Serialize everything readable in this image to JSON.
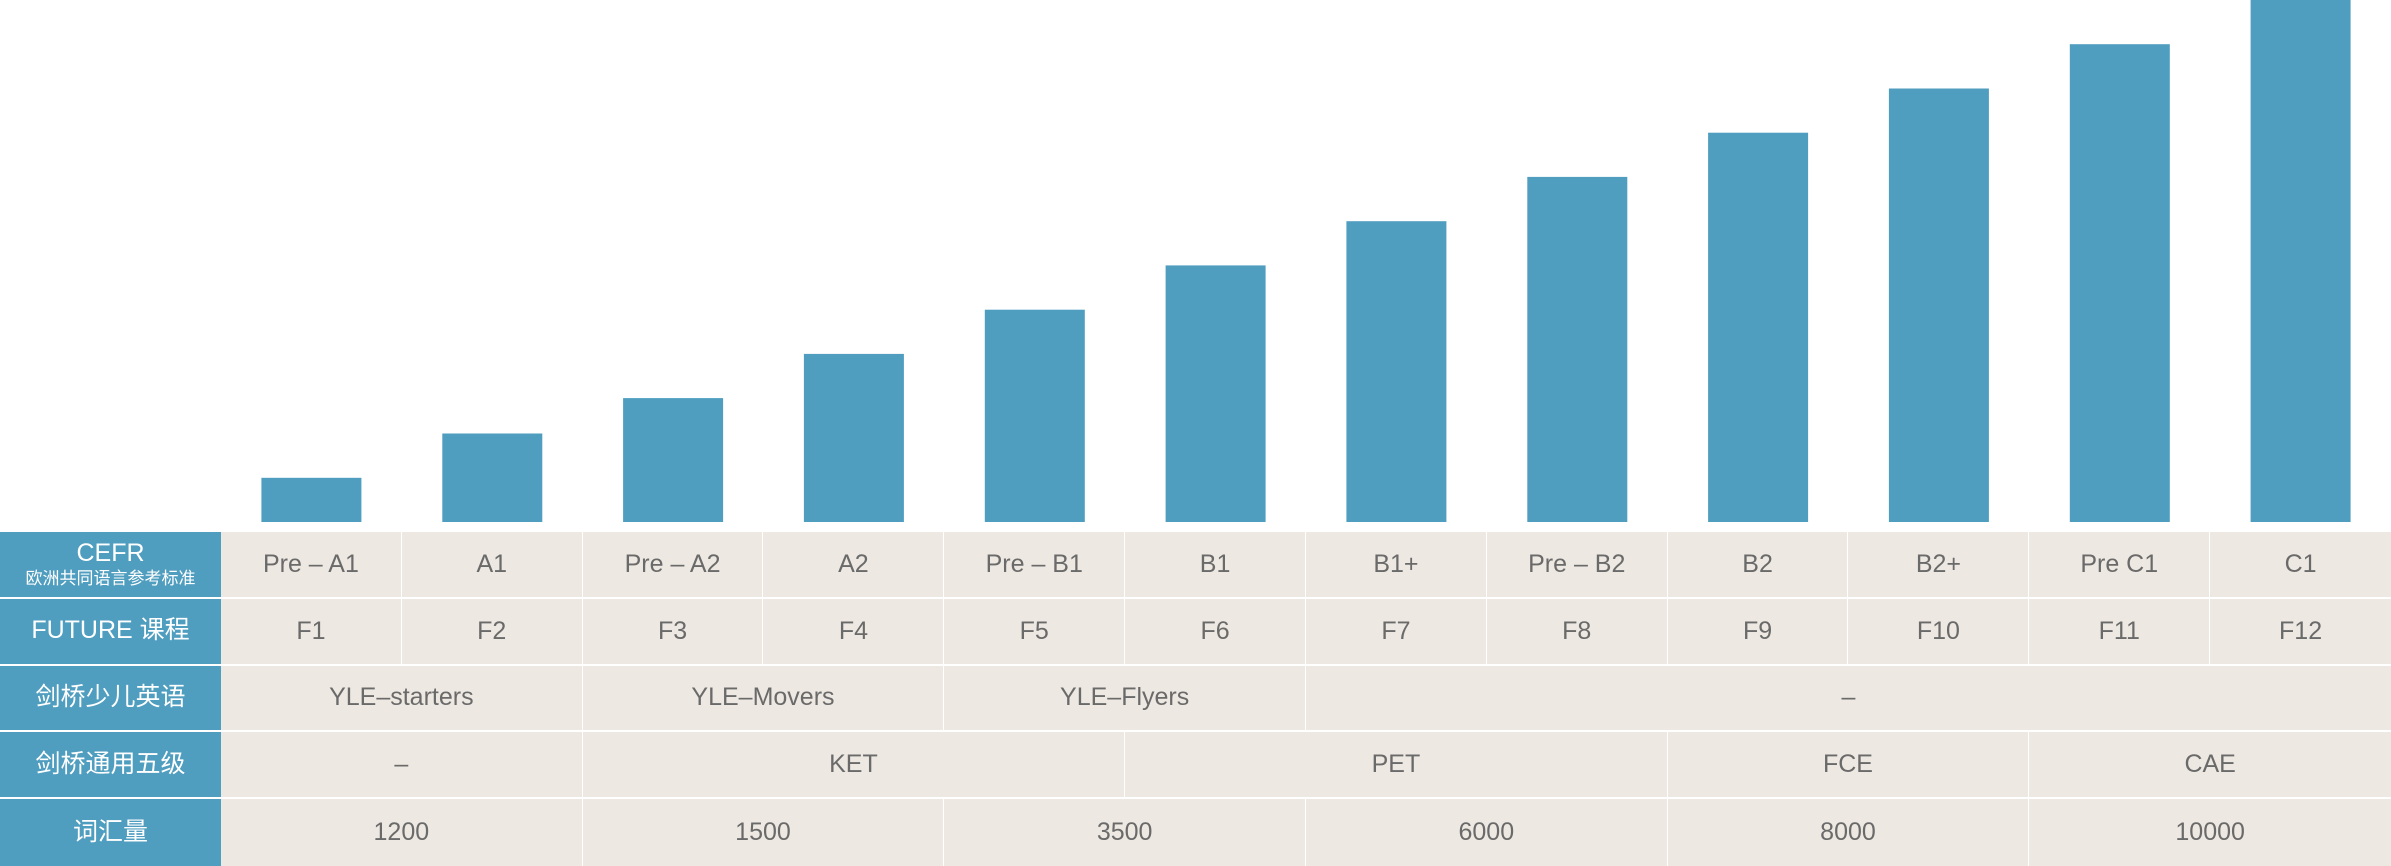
{
  "colors": {
    "bar": "#4f9dbf",
    "header_bg": "#4f9dbf",
    "cell_bg": "#ede8e1",
    "text": "#6a6a6a"
  },
  "chart_data": {
    "type": "bar",
    "categories": [
      "Pre – A1",
      "A1",
      "Pre – A2",
      "A2",
      "Pre – B1",
      "B1",
      "B1+",
      "Pre – B2",
      "B2",
      "B2+",
      "Pre C1",
      "C1"
    ],
    "values": [
      1,
      2,
      2.8,
      3.8,
      4.8,
      5.8,
      6.8,
      7.8,
      8.8,
      9.8,
      10.8,
      11.8
    ],
    "ylim": [
      0,
      11.8
    ],
    "grid": false,
    "title": "",
    "xlabel": "",
    "ylabel": ""
  },
  "table": {
    "rows": [
      {
        "header": "CEFR",
        "subheader": "欧洲共同语言参考标准",
        "cells": [
          {
            "text": "Pre – A1",
            "span": 1
          },
          {
            "text": "A1",
            "span": 1
          },
          {
            "text": "Pre – A2",
            "span": 1
          },
          {
            "text": "A2",
            "span": 1
          },
          {
            "text": "Pre – B1",
            "span": 1
          },
          {
            "text": "B1",
            "span": 1
          },
          {
            "text": "B1+",
            "span": 1
          },
          {
            "text": "Pre – B2",
            "span": 1
          },
          {
            "text": "B2",
            "span": 1
          },
          {
            "text": "B2+",
            "span": 1
          },
          {
            "text": "Pre C1",
            "span": 1
          },
          {
            "text": "C1",
            "span": 1
          }
        ]
      },
      {
        "header": "FUTURE 课程",
        "subheader": "",
        "cells": [
          {
            "text": "F1",
            "span": 1
          },
          {
            "text": "F2",
            "span": 1
          },
          {
            "text": "F3",
            "span": 1
          },
          {
            "text": "F4",
            "span": 1
          },
          {
            "text": "F5",
            "span": 1
          },
          {
            "text": "F6",
            "span": 1
          },
          {
            "text": "F7",
            "span": 1
          },
          {
            "text": "F8",
            "span": 1
          },
          {
            "text": "F9",
            "span": 1
          },
          {
            "text": "F10",
            "span": 1
          },
          {
            "text": "F11",
            "span": 1
          },
          {
            "text": "F12",
            "span": 1
          }
        ]
      },
      {
        "header": "剑桥少儿英语",
        "subheader": "",
        "cells": [
          {
            "text": "YLE–starters",
            "span": 2
          },
          {
            "text": "YLE–Movers",
            "span": 2
          },
          {
            "text": "YLE–Flyers",
            "span": 2
          },
          {
            "text": "–",
            "span": 6
          }
        ]
      },
      {
        "header": "剑桥通用五级",
        "subheader": "",
        "cells": [
          {
            "text": "–",
            "span": 2
          },
          {
            "text": "KET",
            "span": 3
          },
          {
            "text": "PET",
            "span": 3
          },
          {
            "text": "FCE",
            "span": 2
          },
          {
            "text": "CAE",
            "span": 2
          }
        ]
      },
      {
        "header": "词汇量",
        "subheader": "",
        "cells": [
          {
            "text": "1200",
            "span": 2
          },
          {
            "text": "1500",
            "span": 2
          },
          {
            "text": "3500",
            "span": 2
          },
          {
            "text": "6000",
            "span": 2
          },
          {
            "text": "8000",
            "span": 2
          },
          {
            "text": "10000",
            "span": 2
          }
        ]
      }
    ]
  }
}
